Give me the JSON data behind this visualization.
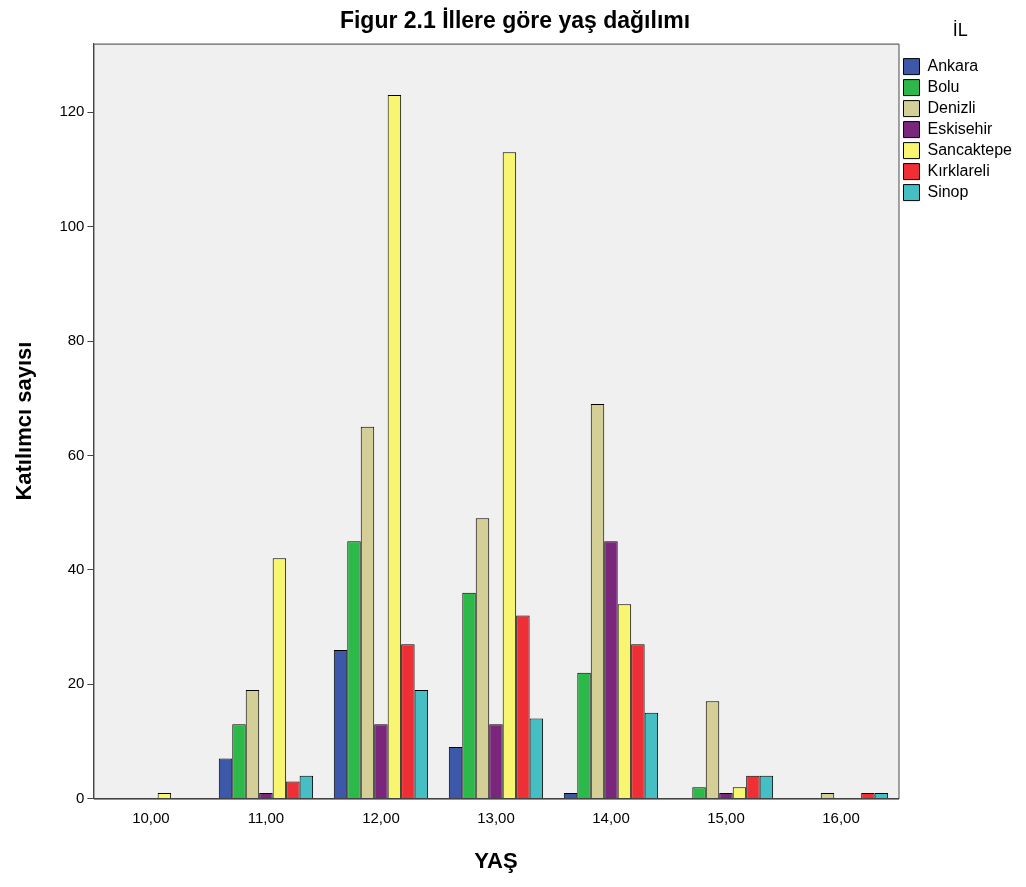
{
  "chart_data": {
    "type": "bar",
    "title": "Figur 2.1 İllere göre yaş dağılımı",
    "xlabel": "YAŞ",
    "ylabel": "Katılımcı sayısı",
    "legend_title": "İL",
    "legend": "right",
    "grid": false,
    "categories": [
      "10,00",
      "11,00",
      "12,00",
      "13,00",
      "14,00",
      "15,00",
      "16,00"
    ],
    "ylim": [
      0,
      132
    ],
    "yticks": [
      0,
      20,
      40,
      60,
      80,
      100,
      120
    ],
    "series": [
      {
        "name": "Ankara",
        "color": "#3d58a8",
        "values": [
          null,
          7,
          26,
          9,
          1,
          null,
          null
        ]
      },
      {
        "name": "Bolu",
        "color": "#2db84a",
        "values": [
          null,
          13,
          45,
          36,
          22,
          2,
          null
        ]
      },
      {
        "name": "Denizli",
        "color": "#d4cf97",
        "values": [
          null,
          19,
          65,
          49,
          69,
          17,
          1
        ]
      },
      {
        "name": "Eskisehir",
        "color": "#7b267d",
        "values": [
          null,
          1,
          13,
          13,
          45,
          1,
          null
        ]
      },
      {
        "name": "Sancaktepe",
        "color": "#f8f571",
        "values": [
          1,
          42,
          123,
          113,
          34,
          2,
          null
        ]
      },
      {
        "name": "Kırklareli",
        "color": "#ee3036",
        "values": [
          null,
          3,
          27,
          32,
          27,
          4,
          1
        ]
      },
      {
        "name": "Sinop",
        "color": "#46bfc4",
        "values": [
          null,
          4,
          19,
          14,
          15,
          4,
          1
        ]
      }
    ]
  }
}
